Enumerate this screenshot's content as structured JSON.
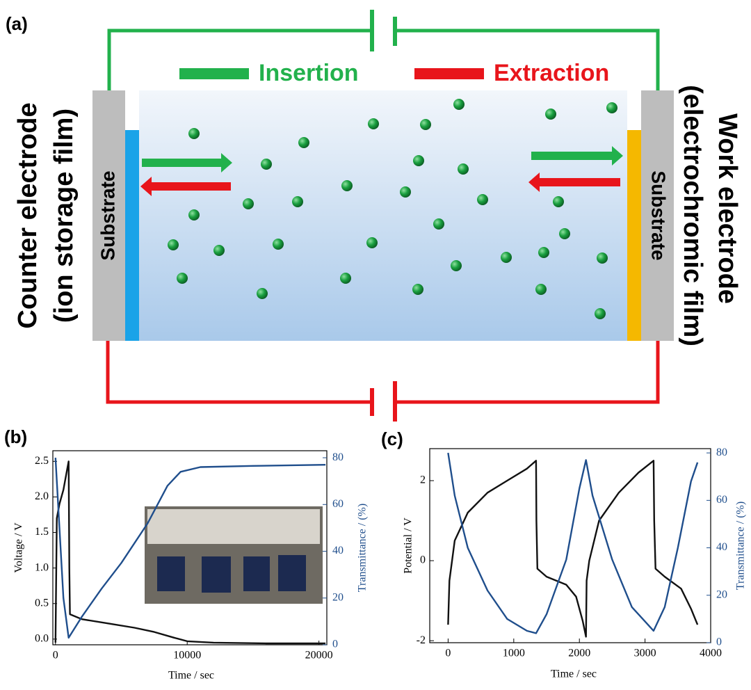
{
  "panel_a": {
    "label": "(a)",
    "insertion": "Insertion",
    "extraction": "Extraction",
    "left_electrode": "Counter electrode",
    "left_film": "(ion storage film)",
    "right_electrode": "Work electrode",
    "right_film": "(electrochromic film)",
    "substrate_left": "Substrate",
    "substrate_right": "Substrate"
  },
  "chart_data": [
    {
      "type": "line",
      "label": "(b)",
      "xlabel": "Time / sec",
      "ylabel": "Voltage / V",
      "y2label": "Transmittance / (%)",
      "xlim": [
        -200,
        20600
      ],
      "xticks": [
        0,
        10000,
        20000
      ],
      "ylim": [
        -0.08,
        2.65
      ],
      "yticks": [
        {
          "value": 0,
          "label": "0.0"
        },
        0.5,
        {
          "value": 1,
          "label": "1.0"
        },
        1.5,
        {
          "value": 2,
          "label": "2.0"
        },
        2.5
      ],
      "y2lim": [
        0,
        83
      ],
      "y2ticks": [
        0,
        20,
        40,
        60,
        80
      ],
      "series": [
        {
          "name": "Voltage",
          "color": "#111111",
          "x": [
            0,
            100,
            300,
            600,
            900,
            1000,
            1050,
            1100,
            2000,
            4000,
            6000,
            7500,
            9000,
            10000,
            12000,
            16000,
            20500
          ],
          "values": [
            -0.05,
            1.7,
            1.9,
            2.1,
            2.4,
            2.5,
            1.0,
            0.35,
            0.28,
            0.22,
            0.16,
            0.1,
            0.02,
            -0.03,
            -0.05,
            -0.06,
            -0.06
          ]
        },
        {
          "name": "Transmittance",
          "color": "#1f4e8c",
          "axis": "y2",
          "x": [
            0,
            300,
            600,
            1000,
            2000,
            3500,
            5000,
            7000,
            8500,
            9500,
            11000,
            15000,
            20500
          ],
          "values": [
            80,
            50,
            20,
            3,
            12,
            24,
            35,
            52,
            68,
            74,
            76,
            76.5,
            77
          ]
        }
      ]
    },
    {
      "type": "line",
      "label": "(c)",
      "xlabel": "Time / sec",
      "ylabel": "Potential / V",
      "y2label": "Transmittance / (%)",
      "xlim": [
        -280,
        4000
      ],
      "xticks": [
        0,
        1000,
        2000,
        3000,
        4000
      ],
      "ylim": [
        -2.05,
        2.8
      ],
      "yticks": [
        -2,
        0,
        2
      ],
      "y2lim": [
        0,
        81.8
      ],
      "y2ticks": [
        0,
        20,
        40,
        60,
        80
      ],
      "series": [
        {
          "name": "Potential",
          "color": "#111111",
          "x": [
            0,
            20,
            100,
            300,
            600,
            900,
            1200,
            1340,
            1345,
            1360,
            1500,
            1800,
            1950,
            2050,
            2100,
            2110,
            2150,
            2300,
            2600,
            2900,
            3130,
            3140,
            3160,
            3300,
            3550,
            3700,
            3800
          ],
          "values": [
            -1.6,
            -0.5,
            0.5,
            1.2,
            1.7,
            2.0,
            2.3,
            2.5,
            1.0,
            -0.2,
            -0.4,
            -0.6,
            -0.9,
            -1.5,
            -1.9,
            -0.5,
            0.0,
            1.0,
            1.7,
            2.2,
            2.5,
            1.0,
            -0.2,
            -0.4,
            -0.7,
            -1.2,
            -1.6
          ]
        },
        {
          "name": "Transmittance",
          "color": "#1f4e8c",
          "axis": "y2",
          "x": [
            0,
            100,
            300,
            600,
            900,
            1200,
            1340,
            1500,
            1800,
            2000,
            2100,
            2200,
            2500,
            2800,
            3130,
            3300,
            3500,
            3700,
            3800
          ],
          "values": [
            80,
            62,
            40,
            22,
            10,
            5,
            4,
            12,
            35,
            65,
            77,
            62,
            35,
            15,
            5,
            15,
            40,
            68,
            76
          ]
        }
      ]
    }
  ]
}
